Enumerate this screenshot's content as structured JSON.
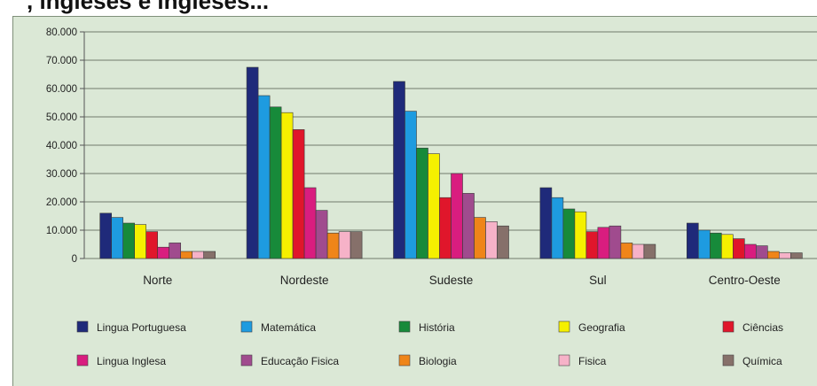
{
  "page_title": ", ingleses e ingleses...",
  "chart_data": {
    "type": "bar",
    "title": "",
    "xlabel": "",
    "ylabel": "",
    "ylim": [
      0,
      80000
    ],
    "yticks": [
      0,
      10000,
      20000,
      30000,
      40000,
      50000,
      60000,
      70000,
      80000
    ],
    "ytick_labels": [
      "0",
      "10.000",
      "20.000",
      "30.000",
      "40.000",
      "50.000",
      "60.000",
      "70.000",
      "80.000"
    ],
    "grid": true,
    "legend_position": "bottom",
    "categories": [
      "Norte",
      "Nordeste",
      "Sudeste",
      "Sul",
      "Centro-Oeste"
    ],
    "series": [
      {
        "name": "Lingua Portuguesa",
        "color": "#1f2a7a",
        "values": [
          16000,
          67500,
          62500,
          25000,
          12500
        ]
      },
      {
        "name": "Matemática",
        "color": "#1e9be0",
        "values": [
          14500,
          57500,
          52000,
          21500,
          10000
        ]
      },
      {
        "name": "História",
        "color": "#178a3a",
        "values": [
          12500,
          53500,
          39000,
          17500,
          9000
        ]
      },
      {
        "name": "Geografia",
        "color": "#f5f000",
        "values": [
          12000,
          51500,
          37000,
          16500,
          8500
        ]
      },
      {
        "name": "Ciências",
        "color": "#e0162b",
        "values": [
          9500,
          45500,
          21500,
          9500,
          7000
        ]
      },
      {
        "name": "Lingua Inglesa",
        "color": "#d91d7f",
        "values": [
          4000,
          25000,
          30000,
          11000,
          5000
        ]
      },
      {
        "name": "Educação Fisica",
        "color": "#a04b8e",
        "values": [
          5500,
          17000,
          23000,
          11500,
          4500
        ]
      },
      {
        "name": "Biologia",
        "color": "#ef8519",
        "values": [
          2500,
          9000,
          14500,
          5500,
          2500
        ]
      },
      {
        "name": "Fisica",
        "color": "#f6b2c8",
        "values": [
          2500,
          9500,
          13000,
          5000,
          2000
        ]
      },
      {
        "name": "Química",
        "color": "#86706a",
        "values": [
          2500,
          9500,
          11500,
          5000,
          2000
        ]
      }
    ]
  }
}
